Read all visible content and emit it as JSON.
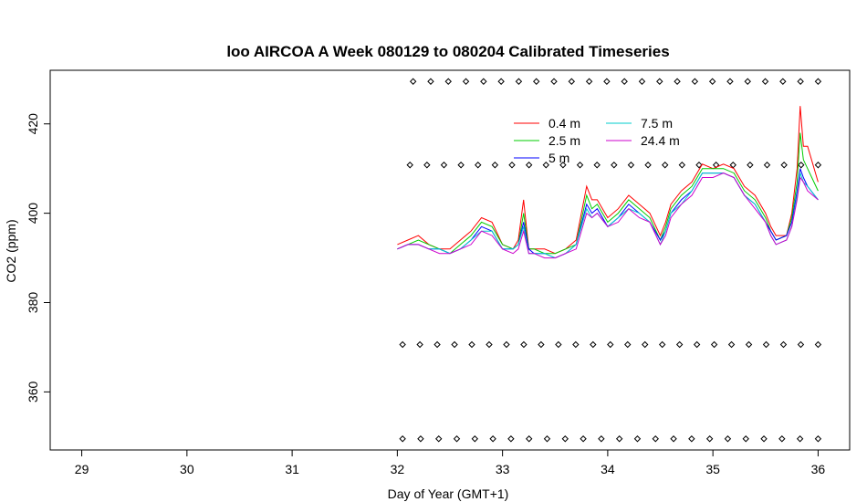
{
  "chart_data": {
    "type": "line",
    "title": "loo AIRCOA A  Week 080129 to 080204  Calibrated Timeseries",
    "xlabel": "Day of Year (GMT+1)",
    "ylabel": "CO2 (ppm)",
    "xlim": [
      28.7,
      36.3
    ],
    "ylim": [
      347,
      432
    ],
    "xticks": [
      29,
      30,
      31,
      32,
      33,
      34,
      35,
      36
    ],
    "yticks": [
      360,
      380,
      400,
      420
    ],
    "grid": false,
    "legend_position": "top-right",
    "series": [
      {
        "name": "0.4 m",
        "color": "#ff0000",
        "x": [
          32.0,
          32.1,
          32.2,
          32.3,
          32.4,
          32.5,
          32.6,
          32.7,
          32.8,
          32.9,
          33.0,
          33.1,
          33.15,
          33.2,
          33.25,
          33.3,
          33.4,
          33.5,
          33.6,
          33.7,
          33.8,
          33.85,
          33.9,
          34.0,
          34.1,
          34.2,
          34.3,
          34.4,
          34.5,
          34.55,
          34.6,
          34.7,
          34.8,
          34.9,
          35.0,
          35.1,
          35.2,
          35.3,
          35.4,
          35.5,
          35.55,
          35.6,
          35.7,
          35.75,
          35.8,
          35.83,
          35.86,
          35.9,
          36.0
        ],
        "y": [
          393,
          394,
          395,
          393,
          392,
          392,
          394,
          396,
          399,
          398,
          393,
          392,
          394,
          403,
          392,
          392,
          392,
          391,
          392,
          394,
          406,
          403,
          403,
          399,
          401,
          404,
          402,
          400,
          395,
          398,
          402,
          405,
          407,
          411,
          410,
          411,
          410,
          406,
          404,
          400,
          397,
          395,
          395,
          400,
          410,
          424,
          415,
          415,
          407
        ]
      },
      {
        "name": "2.5 m",
        "color": "#00cc00",
        "x": [
          32.0,
          32.1,
          32.2,
          32.3,
          32.4,
          32.5,
          32.6,
          32.7,
          32.8,
          32.9,
          33.0,
          33.1,
          33.15,
          33.2,
          33.25,
          33.3,
          33.4,
          33.5,
          33.6,
          33.7,
          33.8,
          33.85,
          33.9,
          34.0,
          34.1,
          34.2,
          34.3,
          34.4,
          34.5,
          34.55,
          34.6,
          34.7,
          34.8,
          34.9,
          35.0,
          35.1,
          35.2,
          35.3,
          35.4,
          35.5,
          35.55,
          35.6,
          35.7,
          35.75,
          35.8,
          35.83,
          35.86,
          35.9,
          36.0
        ],
        "y": [
          392,
          393,
          394,
          393,
          392,
          391,
          393,
          395,
          398,
          397,
          393,
          392,
          393,
          400,
          392,
          392,
          391,
          391,
          392,
          393,
          404,
          401,
          402,
          398,
          400,
          403,
          401,
          399,
          394,
          397,
          401,
          404,
          406,
          410,
          410,
          410,
          409,
          405,
          403,
          399,
          396,
          394,
          395,
          399,
          407,
          418,
          412,
          410,
          405
        ]
      },
      {
        "name": "5 m",
        "color": "#0000ff",
        "x": [
          32.0,
          32.1,
          32.2,
          32.3,
          32.4,
          32.5,
          32.6,
          32.7,
          32.8,
          32.9,
          33.0,
          33.1,
          33.15,
          33.2,
          33.25,
          33.3,
          33.4,
          33.5,
          33.6,
          33.7,
          33.8,
          33.85,
          33.9,
          34.0,
          34.1,
          34.2,
          34.3,
          34.4,
          34.5,
          34.55,
          34.6,
          34.7,
          34.8,
          34.9,
          35.0,
          35.1,
          35.2,
          35.3,
          35.4,
          35.5,
          35.55,
          35.6,
          35.7,
          35.75,
          35.8,
          35.83,
          35.86,
          35.9,
          36.0
        ],
        "y": [
          392,
          393,
          393,
          392,
          392,
          391,
          392,
          394,
          397,
          396,
          392,
          392,
          393,
          398,
          392,
          391,
          391,
          390,
          391,
          393,
          402,
          400,
          401,
          397,
          399,
          402,
          400,
          398,
          394,
          396,
          400,
          403,
          405,
          409,
          409,
          409,
          408,
          404,
          402,
          398,
          396,
          394,
          395,
          398,
          405,
          410,
          408,
          406,
          403
        ]
      },
      {
        "name": "7.5 m",
        "color": "#00cccc",
        "x": [
          32.0,
          32.1,
          32.2,
          32.3,
          32.4,
          32.5,
          32.6,
          32.7,
          32.8,
          32.9,
          33.0,
          33.1,
          33.15,
          33.2,
          33.25,
          33.3,
          33.4,
          33.5,
          33.6,
          33.7,
          33.8,
          33.85,
          33.9,
          34.0,
          34.1,
          34.2,
          34.3,
          34.4,
          34.5,
          34.55,
          34.6,
          34.7,
          34.8,
          34.9,
          35.0,
          35.1,
          35.2,
          35.3,
          35.4,
          35.5,
          35.55,
          35.6,
          35.7,
          35.75,
          35.8,
          35.83,
          35.86,
          35.9,
          36.0
        ],
        "y": [
          392,
          393,
          393,
          392,
          392,
          391,
          392,
          394,
          396,
          396,
          392,
          392,
          393,
          397,
          391,
          391,
          391,
          390,
          391,
          393,
          401,
          399,
          400,
          397,
          399,
          401,
          400,
          398,
          393,
          396,
          400,
          402,
          405,
          409,
          409,
          409,
          408,
          404,
          402,
          398,
          395,
          393,
          394,
          397,
          404,
          409,
          407,
          406,
          403
        ]
      },
      {
        "name": "24.4 m",
        "color": "#cc00cc",
        "x": [
          32.0,
          32.1,
          32.2,
          32.3,
          32.4,
          32.5,
          32.6,
          32.7,
          32.8,
          32.9,
          33.0,
          33.1,
          33.15,
          33.2,
          33.25,
          33.3,
          33.4,
          33.5,
          33.6,
          33.7,
          33.8,
          33.85,
          33.9,
          34.0,
          34.1,
          34.2,
          34.3,
          34.4,
          34.5,
          34.55,
          34.6,
          34.7,
          34.8,
          34.9,
          35.0,
          35.1,
          35.2,
          35.3,
          35.4,
          35.5,
          35.55,
          35.6,
          35.7,
          35.75,
          35.8,
          35.83,
          35.86,
          35.9,
          36.0
        ],
        "y": [
          392,
          393,
          393,
          392,
          391,
          391,
          392,
          393,
          396,
          395,
          392,
          391,
          392,
          396,
          391,
          391,
          390,
          390,
          391,
          392,
          400,
          399,
          400,
          397,
          398,
          401,
          399,
          398,
          393,
          395,
          399,
          402,
          404,
          408,
          408,
          409,
          408,
          404,
          401,
          398,
          395,
          393,
          394,
          397,
          403,
          408,
          407,
          405,
          403
        ]
      }
    ],
    "marker_rows": [
      {
        "y": 429.5,
        "x_start": 32.15,
        "x_end": 36.0,
        "count": 24
      },
      {
        "y": 410.8,
        "x_start": 32.12,
        "x_end": 36.0,
        "count": 25
      },
      {
        "y": 370.6,
        "x_start": 32.05,
        "x_end": 36.0,
        "count": 25
      },
      {
        "y": 349.5,
        "x_start": 32.05,
        "x_end": 36.0,
        "count": 24
      }
    ]
  }
}
